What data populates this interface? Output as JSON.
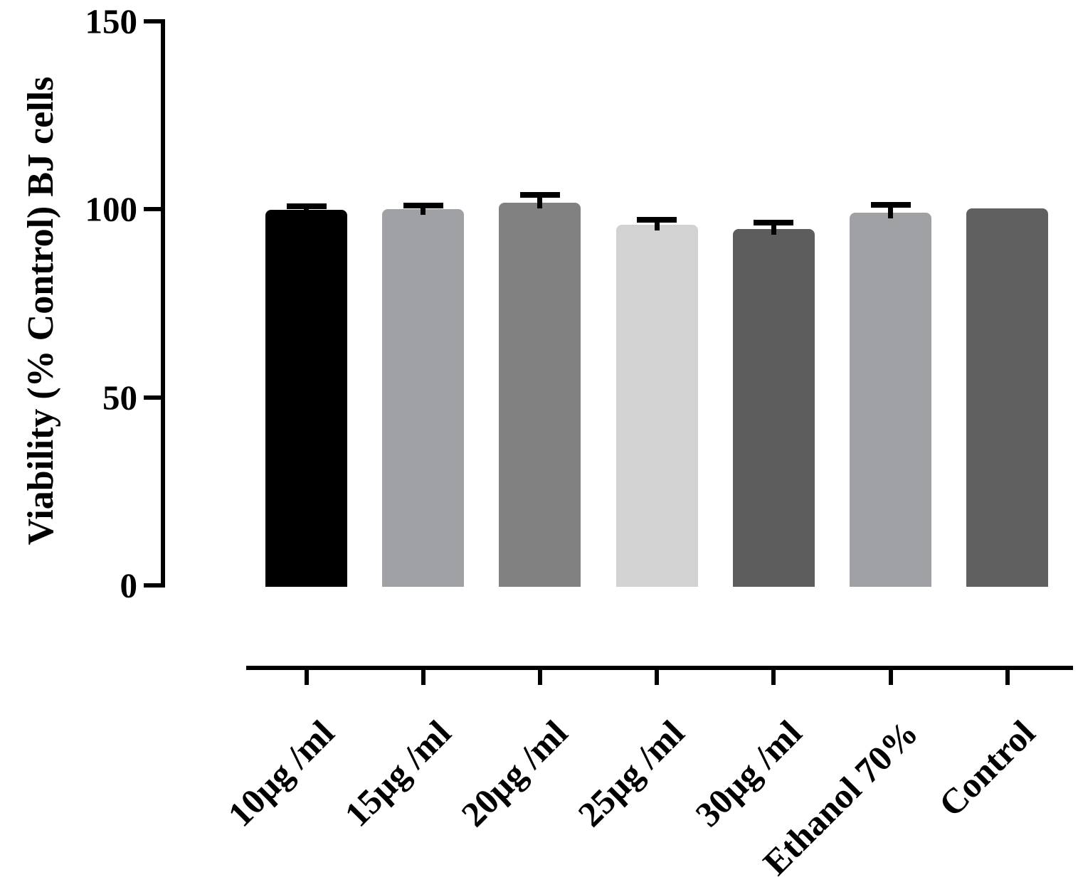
{
  "chart_data": {
    "type": "bar",
    "title": "",
    "xlabel": "",
    "ylabel": "Viability (% Control) BJ cells",
    "ylim": [
      0,
      150
    ],
    "yticks": [
      0,
      50,
      100,
      150
    ],
    "grid": false,
    "legend_position": "none",
    "categories": [
      "10µg /ml",
      "15µg /ml",
      "20µg /ml",
      "25µg /ml",
      "30µg /ml",
      "Ethanol 70%",
      "Control"
    ],
    "values": [
      100.0,
      100.2,
      101.8,
      96.0,
      94.9,
      99.3,
      100.4
    ],
    "errors": [
      0.9,
      0.9,
      2.2,
      1.3,
      1.7,
      2.0,
      0
    ],
    "bar_colors": [
      "#000000",
      "#a0a1a5",
      "#818181",
      "#d2d2d3",
      "#5d5d5d",
      "#a0a1a5",
      "#606060"
    ],
    "axis_color": "#000000",
    "error_bar_color": "#000000"
  }
}
